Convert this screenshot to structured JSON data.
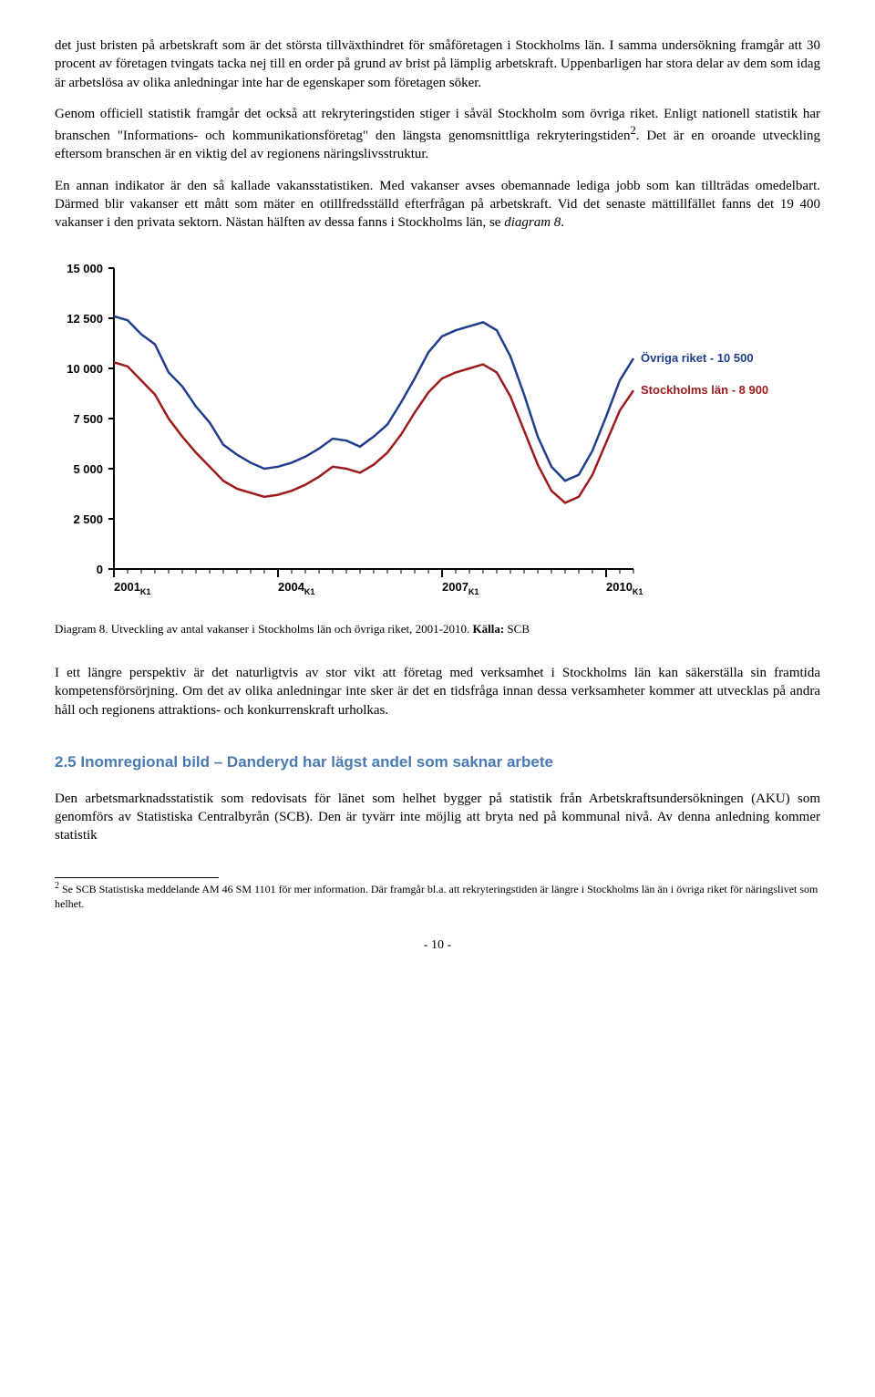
{
  "paragraphs": {
    "p1": "det just bristen på arbetskraft som är det största tillväxthindret för småföretagen i Stockholms län. I samma undersökning framgår att 30 procent av företagen tvingats tacka nej till en order på grund av brist på lämplig arbetskraft. Uppenbarligen har stora delar av dem som idag är arbetslösa av olika anledningar inte har de egenskaper som företagen söker.",
    "p2a": "Genom officiell statistik framgår det också att rekryteringstiden stiger i såväl Stockholm som övriga riket. Enligt nationell statistik har branschen \"Informations- och kommunikationsföretag\" den längsta genomsnittliga rekryteringstiden",
    "p2b": ". Det är en oroande utveckling eftersom branschen är en viktig del av regionens näringslivsstruktur.",
    "p3": "En annan indikator är den så kallade vakansstatistiken. Med vakanser avses obemannade lediga jobb som kan tillträdas omedelbart. Därmed blir vakanser ett mått som mäter en otillfredsställd efterfrågan på arbetskraft. Vid det senaste mättillfället fanns det 19 400 vakanser i den privata sektorn. Nästan hälften av dessa fanns i Stockholms län, se ",
    "p3i": "diagram 8",
    "p3e": ".",
    "p4": "I ett längre perspektiv är det naturligtvis av stor vikt att företag med verksamhet i Stockholms län kan säkerställa sin framtida kompetensförsörjning. Om det av olika anledningar inte sker är det en tidsfråga innan dessa verksamheter kommer att utvecklas på andra håll och regionens attraktions- och konkurrenskraft urholkas.",
    "p5": "Den arbetsmarknadsstatistik som redovisats för länet som helhet bygger på statistik från Arbetskraftsundersökningen (AKU) som genomförs av Statistiska Centralbyrån (SCB). Den är tyvärr inte möjlig att bryta ned på kommunal nivå. Av denna anledning kommer statistik"
  },
  "heading": "2.5 Inomregional bild – Danderyd har lägst andel som saknar arbete",
  "chart": {
    "type": "line",
    "caption_a": "Diagram 8. Utveckling av antal vakanser i Stockholms län och övriga riket, 2001-2010. ",
    "caption_b": "Källa:",
    "caption_c": " SCB",
    "ylim": [
      0,
      15000
    ],
    "yticks": [
      0,
      2500,
      5000,
      7500,
      10000,
      12500,
      15000
    ],
    "ytick_labels": [
      "0",
      "2 500",
      "5 000",
      "7 500",
      "10 000",
      "12 500",
      "15 000"
    ],
    "xticks": [
      0,
      12,
      24,
      36
    ],
    "xtick_labels": [
      "2001",
      "2004",
      "2007",
      "2010"
    ],
    "xtick_sub": "K1",
    "background_color": "#ffffff",
    "axis_color": "#000000",
    "axis_width": 2,
    "line_width": 2.5,
    "series": [
      {
        "name": "Övriga riket",
        "label": "Övriga riket - 10 500",
        "color": "#1f3e8c",
        "values": [
          12600,
          12400,
          11700,
          11200,
          9800,
          9100,
          8100,
          7300,
          6200,
          5700,
          5300,
          5000,
          5100,
          5300,
          5600,
          6000,
          6500,
          6400,
          6100,
          6600,
          7200,
          8300,
          9500,
          10800,
          11600,
          11900,
          12100,
          12300,
          11900,
          10600,
          8700,
          6600,
          5100,
          4400,
          4700,
          5900,
          7600,
          9400,
          10500
        ]
      },
      {
        "name": "Stockholms län",
        "label": "Stockholms län - 8 900",
        "color": "#9c1a1a",
        "values": [
          10300,
          10100,
          9400,
          8700,
          7500,
          6600,
          5800,
          5100,
          4400,
          4000,
          3800,
          3600,
          3700,
          3900,
          4200,
          4600,
          5100,
          5000,
          4800,
          5200,
          5800,
          6700,
          7800,
          8800,
          9500,
          9800,
          10000,
          10200,
          9800,
          8600,
          6900,
          5200,
          3900,
          3300,
          3600,
          4700,
          6300,
          7900,
          8900
        ]
      }
    ]
  },
  "footnote": {
    "num": "2",
    "text": " Se SCB Statistiska meddelande AM 46 SM 1101 för mer information. Där framgår bl.a. att rekryteringstiden är längre i Stockholms län än i övriga riket för näringslivet som helhet."
  },
  "footnote_ref": "2",
  "page_number": "- 10 -"
}
